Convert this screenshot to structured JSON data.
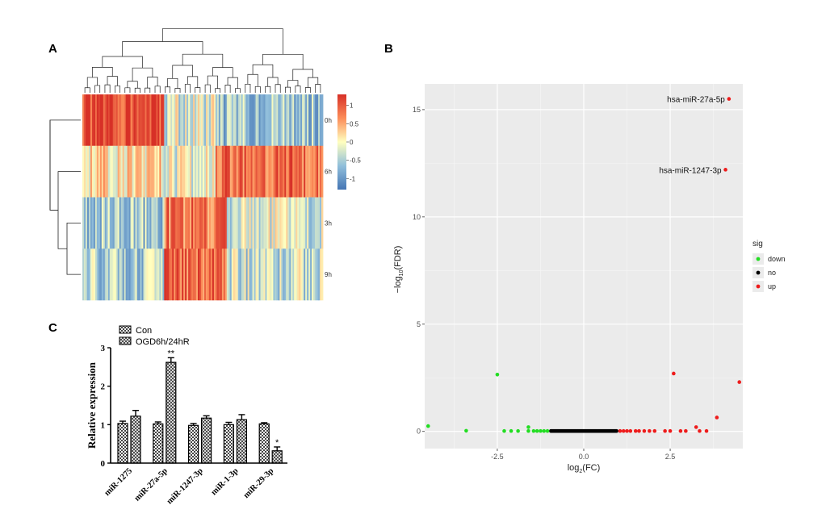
{
  "panels": {
    "a": {
      "letter": "A"
    },
    "b": {
      "letter": "B"
    },
    "c": {
      "letter": "C"
    }
  },
  "colors": {
    "heat_low": "#4575b4",
    "heat_mid": "#ffffbf",
    "heat_high": "#d73027",
    "down": "#22dd22",
    "no": "#000000",
    "up": "#ee1c1c",
    "panel_bg": "#ebebeb"
  },
  "chart_data": [
    {
      "type": "heatmap",
      "rows": [
        "0h",
        "6h",
        "3h",
        "9h"
      ],
      "colorbar": {
        "ticks": [
          "1",
          "0.5",
          "0",
          "-0.5",
          "-1"
        ],
        "range": [
          -1.3,
          1.3
        ]
      },
      "column_count": 150
    },
    {
      "type": "scatter",
      "xlabel_base": "log",
      "xlabel_sub": "2",
      "xlabel_tail": "(FC)",
      "ylabel_prefix": "−log",
      "ylabel_sub": "10",
      "ylabel_tail": "(FDR)",
      "xlim": [
        -4.6,
        4.6
      ],
      "ylim": [
        -0.8,
        16.2
      ],
      "x_ticks": [
        "-2.5",
        "0.0",
        "2.5"
      ],
      "y_ticks": [
        "0",
        "5",
        "10",
        "15"
      ],
      "legend": {
        "title": "sig",
        "entries": [
          "down",
          "no",
          "up"
        ],
        "placement": "right"
      },
      "annotations": [
        {
          "label": "hsa-miR-27a-5p",
          "x": 4.2,
          "y": 15.5
        },
        {
          "label": "hsa-miR-1247-3p",
          "x": 4.1,
          "y": 12.2
        }
      ],
      "series": {
        "down": [
          [
            -4.5,
            0.25
          ],
          [
            -3.4,
            0.03
          ],
          [
            -2.5,
            2.65
          ],
          [
            -2.3,
            0.02
          ],
          [
            -2.1,
            0.02
          ],
          [
            -1.9,
            0.02
          ],
          [
            -1.6,
            0.2
          ],
          [
            -1.6,
            0.02
          ],
          [
            -1.45,
            0.02
          ],
          [
            -1.35,
            0.02
          ],
          [
            -1.25,
            0.02
          ],
          [
            -1.15,
            0.02
          ],
          [
            -1.05,
            0.02
          ]
        ],
        "no": {
          "x_range": [
            -0.95,
            0.95
          ],
          "y": 0.02,
          "count": 70
        },
        "up": [
          [
            1.05,
            0.02
          ],
          [
            1.15,
            0.02
          ],
          [
            1.25,
            0.02
          ],
          [
            1.35,
            0.02
          ],
          [
            1.5,
            0.02
          ],
          [
            1.6,
            0.02
          ],
          [
            1.75,
            0.02
          ],
          [
            1.9,
            0.02
          ],
          [
            2.05,
            0.02
          ],
          [
            2.35,
            0.02
          ],
          [
            2.5,
            0.02
          ],
          [
            2.6,
            2.7
          ],
          [
            2.8,
            0.02
          ],
          [
            2.95,
            0.02
          ],
          [
            3.25,
            0.2
          ],
          [
            3.35,
            0.02
          ],
          [
            3.55,
            0.02
          ],
          [
            3.85,
            0.65
          ],
          [
            4.5,
            2.3
          ],
          [
            4.2,
            15.5
          ],
          [
            4.1,
            12.2
          ]
        ]
      }
    },
    {
      "type": "bar",
      "ylabel": "Relative expression",
      "ylim": [
        0,
        3
      ],
      "y_ticks": [
        "0",
        "1",
        "2",
        "3"
      ],
      "categories": [
        "miR-1275",
        "miR-27a-5p",
        "miR-1247-3p",
        "miR-1-3p",
        "miR-29-3p"
      ],
      "series": [
        {
          "name": "Con",
          "values": [
            1.03,
            1.02,
            0.98,
            1.0,
            1.02
          ],
          "errors": [
            0.06,
            0.05,
            0.05,
            0.06,
            0.03
          ]
        },
        {
          "name": "OGD6h/24hR",
          "values": [
            1.22,
            2.62,
            1.17,
            1.13,
            0.32
          ],
          "errors": [
            0.15,
            0.12,
            0.06,
            0.13,
            0.1
          ]
        }
      ],
      "significance": [
        "",
        "**",
        "",
        "",
        "*"
      ]
    }
  ]
}
